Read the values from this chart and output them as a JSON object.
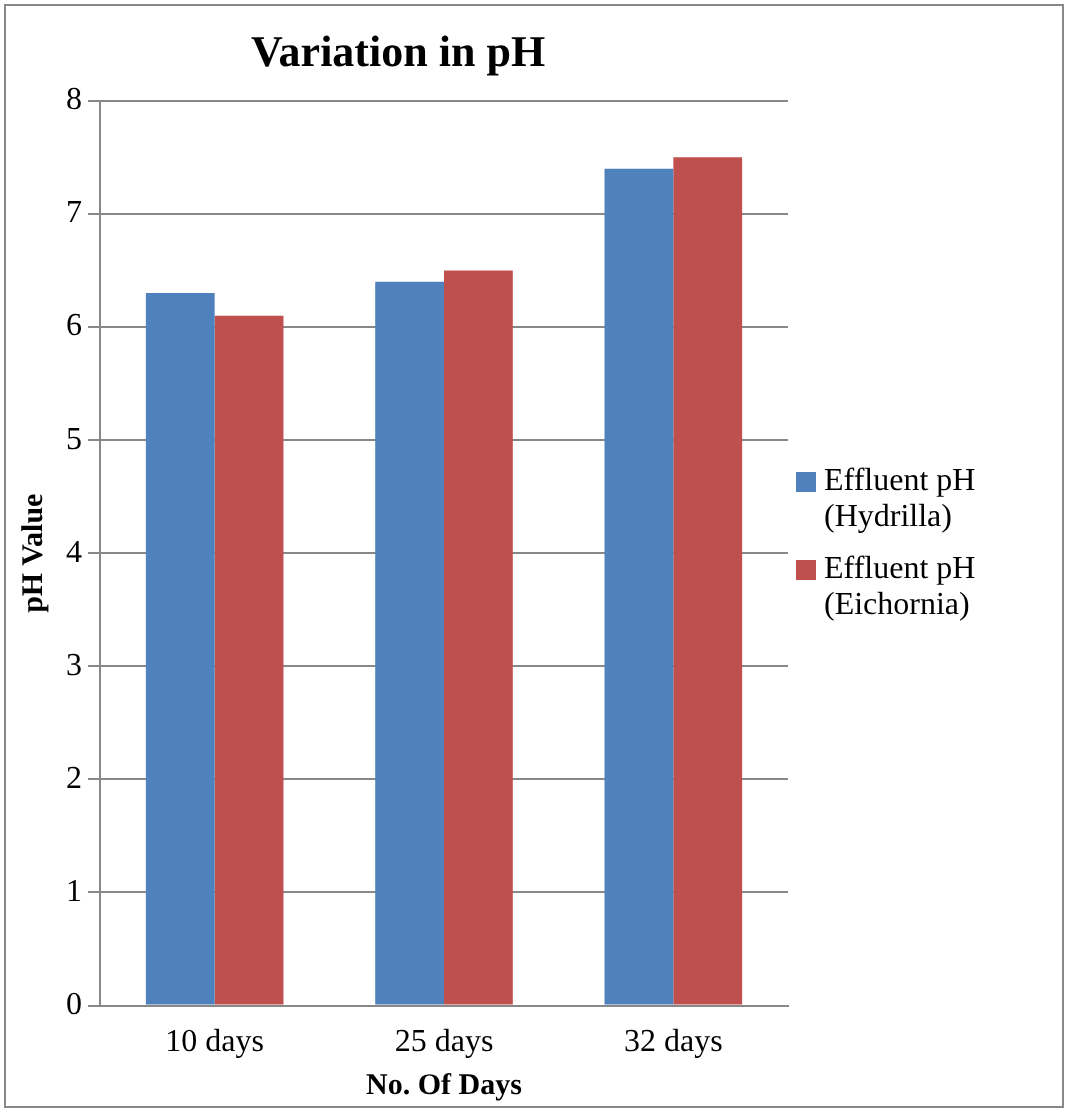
{
  "chart_data": {
    "type": "bar",
    "title": "Variation in pH",
    "xlabel": "No. Of Days",
    "ylabel": "pH Value",
    "categories": [
      "10 days",
      "25 days",
      "32 days"
    ],
    "series": [
      {
        "name": "Effluent pH (Hydrilla)",
        "color": "#4f81bd",
        "values": [
          6.3,
          6.4,
          7.4
        ]
      },
      {
        "name": "Effluent pH (Eichornia)",
        "color": "#c0504d",
        "values": [
          6.1,
          6.5,
          7.5
        ]
      }
    ],
    "ylim": [
      0,
      8
    ],
    "yticks": [
      0,
      1,
      2,
      3,
      4,
      5,
      6,
      7,
      8
    ],
    "grid": "y",
    "legend": "right"
  }
}
